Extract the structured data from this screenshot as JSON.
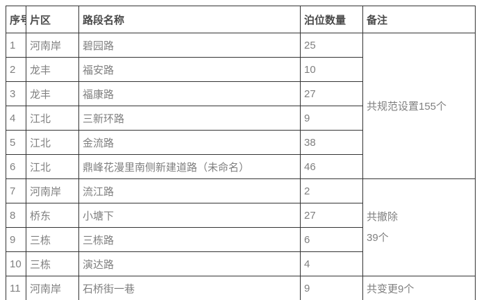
{
  "colors": {
    "background": "#ffffff",
    "border": "#333333",
    "header_text": "#4a4a4a",
    "body_text": "#7f7f7f"
  },
  "table": {
    "headers": {
      "no": "序号",
      "district": "片区",
      "road": "路段名称",
      "count": "泊位数量",
      "remark": "备注"
    },
    "rows": [
      {
        "no": "1",
        "district": "河南岸",
        "road": "碧园路",
        "count": "25"
      },
      {
        "no": "2",
        "district": "龙丰",
        "road": "福安路",
        "count": "10"
      },
      {
        "no": "3",
        "district": "龙丰",
        "road": "福康路",
        "count": "27"
      },
      {
        "no": "4",
        "district": "江北",
        "road": "三新环路",
        "count": "9"
      },
      {
        "no": "5",
        "district": "江北",
        "road": "金流路",
        "count": "38"
      },
      {
        "no": "6",
        "district": "江北",
        "road": "鼎峰花漫里南侧新建道路（未命名）",
        "count": "46"
      },
      {
        "no": "7",
        "district": "河南岸",
        "road": "流江路",
        "count": "2"
      },
      {
        "no": "8",
        "district": "桥东",
        "road": "小塘下",
        "count": "27"
      },
      {
        "no": "9",
        "district": "三栋",
        "road": "三栋路",
        "count": "6"
      },
      {
        "no": "10",
        "district": "三栋",
        "road": "演达路",
        "count": "4"
      },
      {
        "no": "11",
        "district": "河南岸",
        "road": "石桥街一巷",
        "count": "9"
      }
    ],
    "remark_groups": {
      "setup": "共规范设置155个",
      "removed_line1": "共撤除",
      "removed_line2": "39个",
      "changed": "共变更9个"
    }
  }
}
